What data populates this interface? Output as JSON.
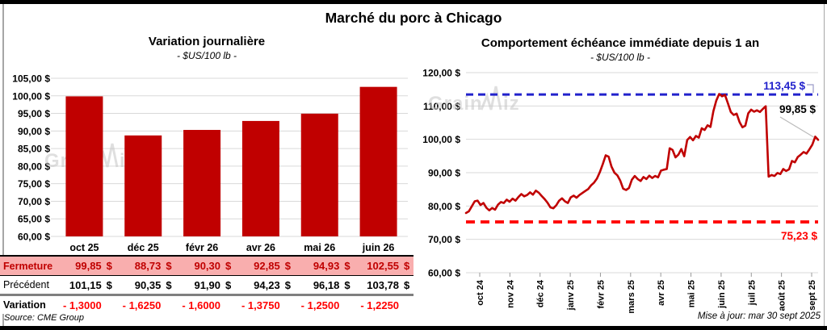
{
  "header": {
    "title": "Marché du porc à Chicago"
  },
  "left": {
    "title": "Variation journalière",
    "subtitle": "- $US/100 lb -",
    "watermark": "GrainWiz",
    "source": "Source: CME Group",
    "table": {
      "rows": [
        {
          "label": "Fermeture",
          "unit": "$",
          "values": [
            "99,85",
            "88,73",
            "90,30",
            "92,85",
            "94,93",
            "102,55"
          ]
        },
        {
          "label": "Précédent",
          "unit": "$",
          "values": [
            "101,15",
            "90,35",
            "91,90",
            "94,23",
            "96,18",
            "103,78"
          ]
        },
        {
          "label": "Variation",
          "unit": "",
          "values": [
            "- 1,3000",
            "- 1,6250",
            "- 1,6000",
            "- 1,3750",
            "- 1,2500",
            "- 1,2250"
          ]
        }
      ]
    }
  },
  "right": {
    "title": "Comportement échéance immédiate depuis 1 an",
    "subtitle": "- $US/100 lb -",
    "watermark": "GrainWiz",
    "updated": "Mise à jour: mar 30 sept 2025"
  },
  "colors": {
    "bar_red": "#C00000",
    "line_red": "#C00000",
    "table_highlight_pink": "#F9AEAE",
    "fermeture_text": "#C00000",
    "variation_text": "#FF0000",
    "hline_blue": "#2222CC",
    "hline_red": "#FF0000",
    "gridline": "#D9D9D9",
    "watermark_gray": "#C6C6C6"
  },
  "chart_data": [
    {
      "type": "bar",
      "title": "Variation journalière",
      "subtitle": "- $US/100 lb -",
      "categories": [
        "oct 25",
        "déc 25",
        "févr 26",
        "avr 26",
        "mai 26",
        "juin 26"
      ],
      "values": [
        99.85,
        88.73,
        90.3,
        92.85,
        94.93,
        102.55
      ],
      "ylim": [
        60,
        105
      ],
      "ytick_step": 5,
      "ytick_labels": [
        "105,00 $",
        "100,00 $",
        "95,00 $",
        "90,00 $",
        "85,00 $",
        "80,00 $",
        "75,00 $",
        "70,00 $",
        "65,00 $",
        "60,00 $"
      ],
      "bar_color": "#C00000",
      "grid": true,
      "legend": "none"
    },
    {
      "type": "line",
      "title": "Comportement échéance immédiate depuis 1 an",
      "subtitle": "- $US/100 lb -",
      "xlabel": "",
      "ylabel": "",
      "x_labels": [
        "oct 24",
        "nov 24",
        "déc 24",
        "janv 25",
        "févr 25",
        "mars 25",
        "avr 25",
        "mai 25",
        "juin 25",
        "juil 25",
        "août 25",
        "sept 25"
      ],
      "ylim": [
        60,
        120
      ],
      "ytick_labels": [
        "120,00 $",
        "110,00 $",
        "100,00 $",
        "90,00 $",
        "80,00 $",
        "70,00 $",
        "60,00 $"
      ],
      "line_color": "#C00000",
      "grid": true,
      "values": [
        77.9,
        78.4,
        79.9,
        81.4,
        81.6,
        80.3,
        80.9,
        79.5,
        78.7,
        79.4,
        78.9,
        80.4,
        81.2,
        80.9,
        81.9,
        81.3,
        82.2,
        81.6,
        82.7,
        83.6,
        82.9,
        83.3,
        84.1,
        83.4,
        84.6,
        84.0,
        83.0,
        82.1,
        81.0,
        79.6,
        79.3,
        80.2,
        81.6,
        82.3,
        81.4,
        80.9,
        82.6,
        83.1,
        82.5,
        83.3,
        83.9,
        84.5,
        85.1,
        86.2,
        87.0,
        88.2,
        90.2,
        92.6,
        95.2,
        94.8,
        91.8,
        90.0,
        89.2,
        87.6,
        85.2,
        84.8,
        85.4,
        87.9,
        89.0,
        88.1,
        87.5,
        88.7,
        88.1,
        89.1,
        88.4,
        89.0,
        88.6,
        90.6,
        90.9,
        91.1,
        97.3,
        96.8,
        94.6,
        95.4,
        97.1,
        94.9,
        99.8,
        100.7,
        99.7,
        101.0,
        100.5,
        103.3,
        102.8,
        104.2,
        103.7,
        108.4,
        111.6,
        113.6,
        112.9,
        113.3,
        110.8,
        108.2,
        107.3,
        107.7,
        105.2,
        103.6,
        104.1,
        107.8,
        108.9,
        108.3,
        108.7,
        108.2,
        109.1,
        109.9,
        88.8,
        89.3,
        89.0,
        89.9,
        89.6,
        91.1,
        90.5,
        91.0,
        93.5,
        93.1,
        94.7,
        95.4,
        96.2,
        95.7,
        97.0,
        98.4,
        100.8,
        99.85
      ],
      "hlines": [
        {
          "value": 113.45,
          "label": "113,45 $",
          "color": "#2222CC",
          "style": "dashed"
        },
        {
          "value": 75.23,
          "label": "75,23 $",
          "color": "#FF0000",
          "style": "dashed"
        }
      ],
      "last_point_label": {
        "value": 99.85,
        "text": "99,85 $"
      }
    }
  ]
}
